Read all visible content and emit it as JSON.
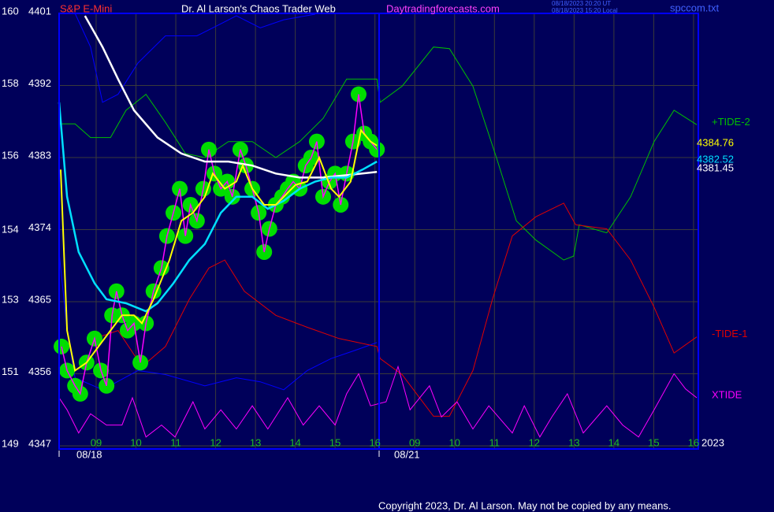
{
  "chart_data": {
    "type": "line",
    "symbol": "S&P E-Mini",
    "title": "Dr. Al Larson's Chaos Trader Web",
    "site": "Daytradingforecasts.com",
    "timestamps": [
      "08/18/2023 20:20 UT",
      "08/18/2023 15:20 Local"
    ],
    "file": "spccom.txt",
    "copyright": "Copyright 2023, Dr. Al Larson. May not be copied by any means.",
    "year": "2023",
    "dates": [
      "08/18",
      "08/21"
    ],
    "xlim": [
      8.07,
      24.12
    ],
    "xticks": [
      {
        "value": 9,
        "label": "09"
      },
      10,
      11,
      12,
      13,
      14,
      15,
      16,
      {
        "value": 17,
        "label": "09"
      },
      {
        "value": 18,
        "label": "10"
      },
      {
        "value": 19,
        "label": "11"
      },
      {
        "value": 20,
        "label": "12"
      },
      {
        "value": 21,
        "label": "13"
      },
      {
        "value": 22,
        "label": "14"
      },
      {
        "value": 23,
        "label": "15"
      },
      {
        "value": 24,
        "label": "16"
      }
    ],
    "ylim": [
      4347,
      4401
    ],
    "yticks": [
      4347,
      4356,
      4365,
      4374,
      4383,
      4392,
      4401
    ],
    "y2lim": [
      149,
      160
    ],
    "y2ticks": [
      149,
      {
        "value": 150.83,
        "label": "151"
      },
      {
        "value": 152.67,
        "label": "153"
      },
      {
        "value": 154.45,
        "label": "154"
      },
      {
        "value": 156.33,
        "label": "156"
      },
      {
        "value": 158.17,
        "label": "158"
      },
      160
    ],
    "grid": true,
    "series": [
      {
        "color": "#0000ff",
        "width": 1,
        "x": [
          8.47,
          8.86,
          9.16,
          9.55,
          10.05,
          10.74,
          11.53,
          12.13,
          12.52,
          13.12,
          13.71,
          14.5
        ],
        "values": [
          4401.0,
          4396.8,
          4389.9,
          4390.9,
          4394.8,
          4398.2,
          4398.2,
          4399.7,
          4400.7,
          4399.2,
          4400.2,
          4400.9
        ]
      },
      {
        "color": "#0000ff",
        "width": 1,
        "x": [
          8.07,
          8.27,
          8.47,
          9.16,
          10.05,
          10.74,
          11.73,
          12.52,
          13.12,
          13.71,
          14.3,
          14.9,
          15.49,
          16.05
        ],
        "values": [
          4371.2,
          4361.4,
          4355.5,
          4354.0,
          4356.4,
          4355.9,
          4354.5,
          4355.5,
          4355.0,
          4354.0,
          4356.4,
          4357.9,
          4358.9,
          4359.9
        ]
      },
      {
        "name": "+TIDE-2",
        "color": "#00c000",
        "width": 1,
        "x": [
          8.07,
          8.47,
          8.86,
          9.36,
          9.75,
          10.25,
          10.74,
          11.24,
          11.73,
          12.32,
          12.92,
          13.51,
          14.11,
          14.7,
          15.29,
          16.05,
          16.13,
          16.68,
          17.47,
          17.87,
          18.46,
          19.05,
          19.55,
          20.04,
          20.74,
          20.99,
          21.13,
          21.82,
          22.42,
          23.01,
          23.51,
          24.08
        ],
        "values": [
          4387.2,
          4387.2,
          4385.5,
          4385.5,
          4388.9,
          4390.9,
          4387.4,
          4383.5,
          4383.0,
          4385.0,
          4385.0,
          4383.0,
          4385.0,
          4387.9,
          4392.8,
          4392.8,
          4389.9,
          4391.9,
          4396.8,
          4396.6,
          4391.9,
          4383.0,
          4375.1,
          4372.7,
          4370.2,
          4370.7,
          4374.6,
          4373.6,
          4378.1,
          4385.0,
          4388.9,
          4387.1
        ]
      },
      {
        "name": "-TIDE-1",
        "color": "#e00000",
        "width": 1,
        "x": [
          8.96,
          9.55,
          10.15,
          10.74,
          11.34,
          11.83,
          12.23,
          12.72,
          13.51,
          14.3,
          15.1,
          16.05,
          16.13,
          16.68,
          17.47,
          17.87,
          18.46,
          18.95,
          19.45,
          20.04,
          20.74,
          21.04,
          21.82,
          22.42,
          23.01,
          23.51,
          24.08
        ],
        "values": [
          4360.4,
          4361.4,
          4356.9,
          4359.4,
          4365.3,
          4369.2,
          4370.2,
          4366.3,
          4363.3,
          4361.8,
          4360.4,
          4359.4,
          4357.9,
          4355.9,
          4350.7,
          4350.7,
          4356.4,
          4365.3,
          4373.2,
          4375.6,
          4377.3,
          4374.6,
          4374.1,
          4370.2,
          4364.3,
          4358.6,
          4360.6
        ]
      },
      {
        "name": "XTIDE",
        "color": "#ff00ff",
        "width": 1,
        "x": [
          8.07,
          8.27,
          8.56,
          8.86,
          9.26,
          9.65,
          9.91,
          10.25,
          10.64,
          10.98,
          11.43,
          11.73,
          12.13,
          12.52,
          12.92,
          13.31,
          13.81,
          14.2,
          14.6,
          15.0,
          15.29,
          15.59,
          15.89,
          16.28,
          16.58,
          16.88,
          17.37,
          17.67,
          18.06,
          18.46,
          18.86,
          19.45,
          19.75,
          20.14,
          20.44,
          20.83,
          21.23,
          21.82,
          22.22,
          22.62,
          23.01,
          23.51,
          23.8,
          24.08
        ],
        "values": [
          4353.0,
          4351.5,
          4348.6,
          4351.0,
          4349.6,
          4349.6,
          4353.0,
          4348.1,
          4349.6,
          4348.1,
          4352.5,
          4349.1,
          4351.5,
          4349.1,
          4352.0,
          4349.1,
          4353.0,
          4349.6,
          4352.0,
          4349.6,
          4353.5,
          4356.0,
          4352.0,
          4352.5,
          4356.9,
          4351.5,
          4354.5,
          4350.6,
          4352.5,
          4349.1,
          4352.0,
          4348.6,
          4352.0,
          4348.1,
          4350.6,
          4353.5,
          4348.6,
          4352.0,
          4349.6,
          4348.1,
          4351.5,
          4356.0,
          4354.1,
          4353.0
        ]
      },
      {
        "color": "#ff00ff",
        "width": 1.5,
        "markers": "#00dd00",
        "x": [
          8.13,
          8.27,
          8.47,
          8.6,
          8.76,
          8.96,
          9.12,
          9.26,
          9.4,
          9.51,
          9.65,
          9.79,
          9.95,
          10.11,
          10.25,
          10.44,
          10.64,
          10.78,
          10.94,
          11.1,
          11.24,
          11.37,
          11.53,
          11.69,
          11.83,
          11.97,
          12.13,
          12.29,
          12.42,
          12.62,
          12.76,
          12.92,
          13.08,
          13.22,
          13.35,
          13.51,
          13.67,
          13.81,
          13.95,
          14.11,
          14.26,
          14.4,
          14.54,
          14.7,
          14.86,
          15.0,
          15.14,
          15.29,
          15.45,
          15.59,
          15.73,
          15.89,
          16.05
        ],
        "values": [
          4359.4,
          4356.4,
          4354.5,
          4353.5,
          4357.4,
          4360.4,
          4356.4,
          4354.5,
          4363.3,
          4366.3,
          4363.3,
          4361.4,
          4362.3,
          4357.4,
          4362.3,
          4366.3,
          4369.2,
          4373.2,
          4376.1,
          4379.1,
          4373.2,
          4377.1,
          4375.1,
          4379.1,
          4384.0,
          4381.0,
          4379.1,
          4380.0,
          4378.1,
          4384.0,
          4382.0,
          4379.1,
          4376.1,
          4371.2,
          4374.1,
          4377.1,
          4378.1,
          4379.1,
          4380.0,
          4379.1,
          4382.0,
          4383.0,
          4385.0,
          4378.1,
          4380.0,
          4381.0,
          4377.1,
          4381.0,
          4385.0,
          4390.9,
          4386.0,
          4385.0,
          4384.0
        ]
      },
      {
        "color": "#ffffff",
        "width": 2.5,
        "last_label": "4381.45",
        "x": [
          8.72,
          9.16,
          9.55,
          9.95,
          10.54,
          11.14,
          11.73,
          12.32,
          12.92,
          13.51,
          14.11,
          14.7,
          15.29,
          16.05
        ],
        "values": [
          4400.7,
          4396.8,
          4392.8,
          4388.9,
          4385.5,
          4383.5,
          4382.5,
          4382.5,
          4382.0,
          4381.0,
          4380.5,
          4380.5,
          4380.8,
          4381.2
        ]
      },
      {
        "color": "#00e0ff",
        "width": 2.5,
        "last_label": "4382.52",
        "x": [
          8.07,
          8.27,
          8.56,
          8.96,
          9.26,
          9.75,
          10.25,
          10.54,
          10.94,
          11.34,
          11.73,
          12.13,
          12.52,
          12.92,
          13.31,
          13.71,
          14.11,
          14.5,
          14.9,
          15.29,
          15.69,
          16.05
        ],
        "values": [
          4389.9,
          4378.1,
          4371.2,
          4367.3,
          4365.3,
          4364.8,
          4363.8,
          4364.8,
          4367.3,
          4370.2,
          4372.2,
          4376.1,
          4378.1,
          4378.1,
          4376.6,
          4377.6,
          4379.1,
          4380.0,
          4380.5,
          4380.5,
          4381.5,
          4382.5
        ]
      },
      {
        "color": "#ffff00",
        "width": 2,
        "last_label": "4384.76",
        "x": [
          8.11,
          8.27,
          8.47,
          8.76,
          9.06,
          9.36,
          9.65,
          9.95,
          10.15,
          10.44,
          10.84,
          11.14,
          11.43,
          11.73,
          11.93,
          12.23,
          12.52,
          12.68,
          12.92,
          13.22,
          13.51,
          13.81,
          14.01,
          14.3,
          14.6,
          14.9,
          15.1,
          15.39,
          15.65,
          15.89,
          16.05
        ],
        "values": [
          4381.5,
          4361.4,
          4356.4,
          4357.4,
          4359.4,
          4361.4,
          4363.3,
          4363.3,
          4362.3,
          4365.3,
          4370.2,
          4375.1,
          4376.1,
          4378.1,
          4381.0,
          4379.1,
          4380.0,
          4382.0,
          4379.1,
          4377.1,
          4377.1,
          4378.6,
          4379.6,
          4380.0,
          4383.0,
          4379.1,
          4378.1,
          4380.0,
          4386.4,
          4385.0,
          4384.5
        ]
      }
    ]
  }
}
